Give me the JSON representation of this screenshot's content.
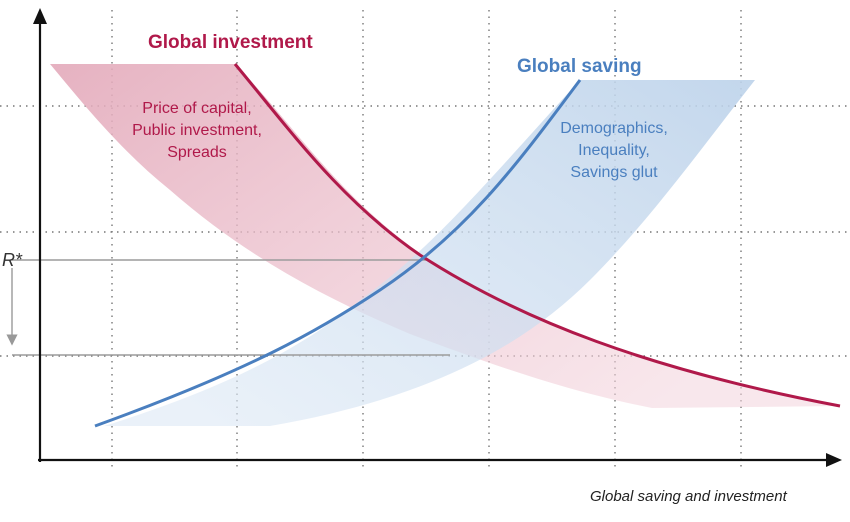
{
  "diagram": {
    "investment": {
      "title": "Global investment",
      "drivers": [
        "Price of capital,",
        "Public investment,",
        "Spreads"
      ],
      "color": "#b0194a",
      "band_color": "#e8b9c6"
    },
    "saving": {
      "title": "Global saving",
      "drivers": [
        "Demographics,",
        "Inequality,",
        "Savings glut"
      ],
      "color": "#4a7fbf",
      "band_color": "#c9dbef"
    },
    "r_star_label": "R*",
    "x_axis_label": "Global saving and investment",
    "r_star_shift": "down",
    "grid": "dotted",
    "axis_color": "#111111",
    "guide_color": "#999999"
  }
}
